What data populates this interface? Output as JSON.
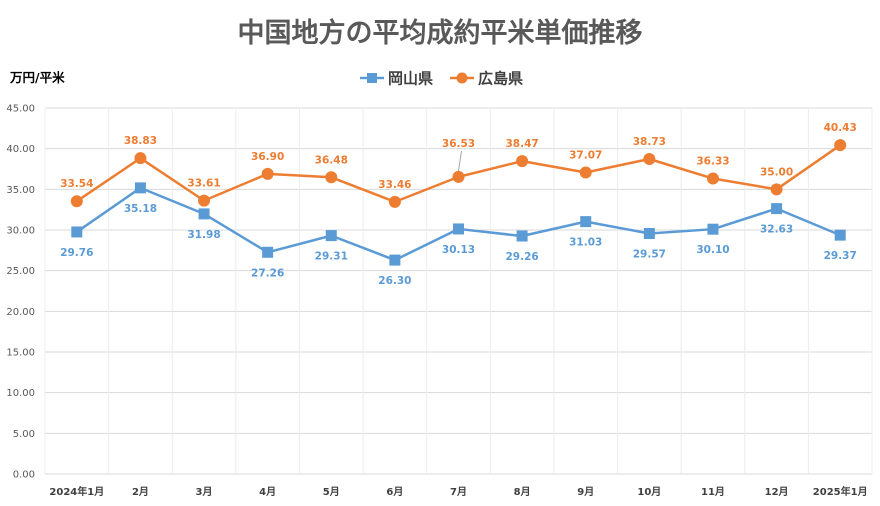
{
  "chart_data": {
    "type": "line",
    "title": "中国地方の平均成約平米単価推移",
    "ylabel": "万円/平米",
    "xlabel": "",
    "ylim": [
      0,
      45
    ],
    "yticks": [
      "0.00",
      "5.00",
      "10.00",
      "15.00",
      "20.00",
      "25.00",
      "30.00",
      "35.00",
      "40.00",
      "45.00"
    ],
    "categories": [
      "2024年1月",
      "2月",
      "3月",
      "4月",
      "5月",
      "6月",
      "7月",
      "8月",
      "9月",
      "10月",
      "11月",
      "12月",
      "2025年1月"
    ],
    "legend_position": "top",
    "grid": true,
    "series": [
      {
        "name": "岡山県",
        "color": "#5b9bd5",
        "marker": "square",
        "values": [
          29.76,
          35.18,
          31.98,
          27.26,
          29.31,
          26.3,
          30.13,
          29.26,
          31.03,
          29.57,
          30.1,
          32.63,
          29.37
        ],
        "labels": [
          "29.76",
          "35.18",
          "31.98",
          "27.26",
          "29.31",
          "26.30",
          "30.13",
          "29.26",
          "31.03",
          "29.57",
          "30.10",
          "32.63",
          "29.37"
        ]
      },
      {
        "name": "広島県",
        "color": "#ed7d31",
        "marker": "circle",
        "values": [
          33.54,
          38.83,
          33.61,
          36.9,
          36.48,
          33.46,
          36.53,
          38.47,
          37.07,
          38.73,
          36.33,
          35.0,
          40.43
        ],
        "labels": [
          "33.54",
          "38.83",
          "33.61",
          "36.90",
          "36.48",
          "33.46",
          "36.53",
          "38.47",
          "37.07",
          "38.73",
          "36.33",
          "35.00",
          "40.43"
        ]
      }
    ]
  }
}
